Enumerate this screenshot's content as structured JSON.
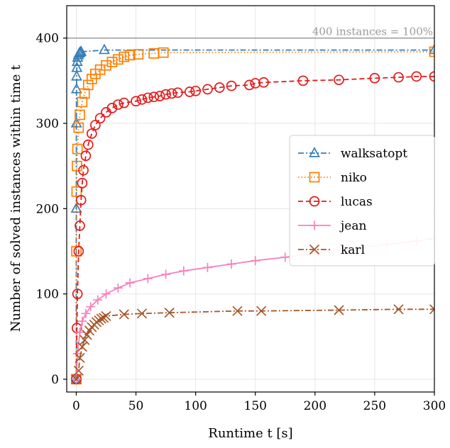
{
  "chart_data": {
    "type": "line",
    "xlabel": "Runtime t [s]",
    "ylabel": "Number of solved instances within time t",
    "xlim": [
      -8,
      300
    ],
    "ylim": [
      -15,
      438
    ],
    "x_ticks": [
      0,
      50,
      100,
      150,
      200,
      250,
      300
    ],
    "y_ticks": [
      0,
      100,
      200,
      300,
      400
    ],
    "grid": true,
    "legend_position": "center-right",
    "reference_line": {
      "y": 400,
      "label": "400 instances = 100%"
    },
    "series": [
      {
        "name": "walksatopt",
        "color": "#377eb8",
        "marker": "triangle",
        "dash": "dashdot",
        "x": [
          0,
          0.05,
          0.1,
          0.2,
          0.3,
          0.5,
          0.8,
          1.2,
          1.8,
          2.5,
          3.2,
          4.0,
          23.5,
          300
        ],
        "y": [
          0,
          200,
          300,
          340,
          355,
          365,
          372,
          377,
          380,
          382,
          383,
          384,
          386,
          386
        ]
      },
      {
        "name": "niko",
        "color": "#ff7f00",
        "marker": "square",
        "dash": "dotted",
        "x": [
          0,
          0.1,
          0.3,
          0.6,
          1,
          2,
          3,
          5,
          7,
          10,
          13,
          16,
          20,
          25,
          30,
          35,
          40,
          45,
          52,
          65,
          73,
          300
        ],
        "y": [
          0,
          150,
          220,
          250,
          270,
          295,
          310,
          325,
          335,
          345,
          352,
          358,
          363,
          368,
          372,
          375,
          378,
          380,
          381,
          382,
          383,
          384
        ]
      },
      {
        "name": "lucas",
        "color": "#e41a1c",
        "marker": "circle",
        "dash": "dashed",
        "x": [
          0,
          0.5,
          1,
          2,
          3,
          4,
          5,
          6,
          8,
          10,
          13,
          16,
          20,
          25,
          30,
          35,
          40,
          50,
          55,
          60,
          65,
          70,
          75,
          80,
          85,
          95,
          100,
          110,
          120,
          130,
          145,
          150,
          157,
          190,
          220,
          250,
          270,
          285,
          300
        ],
        "y": [
          0,
          60,
          100,
          150,
          180,
          210,
          230,
          245,
          262,
          275,
          288,
          298,
          306,
          313,
          318,
          322,
          324,
          326,
          328,
          330,
          331,
          332,
          334,
          335,
          336,
          337,
          338,
          340,
          342,
          344,
          345,
          347,
          348,
          350,
          351,
          353,
          354,
          355,
          355
        ]
      },
      {
        "name": "jean",
        "color": "#f781bf",
        "marker": "plus",
        "dash": "solid",
        "x": [
          0,
          1,
          3,
          5,
          8,
          12,
          18,
          25,
          35,
          45,
          60,
          75,
          90,
          110,
          130,
          150,
          175,
          200,
          230,
          260,
          285,
          300
        ],
        "y": [
          0,
          30,
          55,
          68,
          77,
          85,
          93,
          100,
          107,
          113,
          118,
          123,
          127,
          131,
          135,
          139,
          143,
          148,
          153,
          158,
          162,
          165
        ]
      },
      {
        "name": "karl",
        "color": "#a65628",
        "marker": "x",
        "dash": "dashdot",
        "x": [
          0,
          2,
          3,
          5,
          7,
          9,
          11,
          13,
          15,
          17,
          19,
          21,
          23,
          25,
          40,
          55,
          78,
          135,
          155,
          220,
          270,
          300
        ],
        "y": [
          0,
          10,
          25,
          38,
          46,
          52,
          57,
          61,
          64,
          67,
          69,
          71,
          72,
          74,
          76,
          77,
          78,
          80,
          80,
          81,
          82,
          82
        ]
      }
    ]
  }
}
